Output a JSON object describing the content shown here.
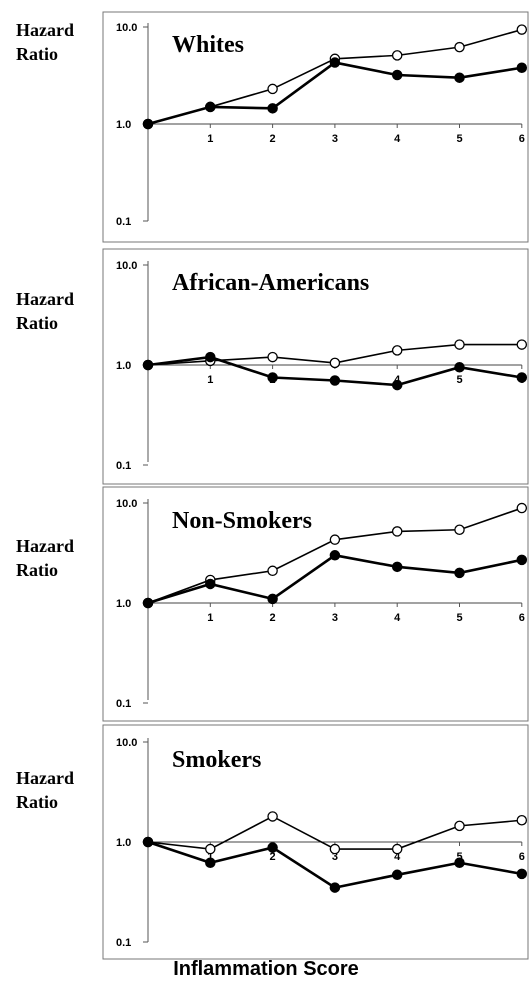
{
  "y_axis_label": [
    "Hazard",
    "Ratio"
  ],
  "x_axis_label": "Inflammation Score",
  "y_ticks": [
    "10.0",
    "1.0",
    "0.1"
  ],
  "x_ticks": [
    "1",
    "2",
    "3",
    "4",
    "5",
    "6"
  ],
  "chart_data": [
    {
      "type": "line",
      "title": "Whites",
      "yscale": "log",
      "ylim": [
        0.1,
        10
      ],
      "x": [
        0,
        1,
        2,
        3,
        4,
        5,
        6
      ],
      "series": [
        {
          "marker": "open-circle",
          "values": [
            1.0,
            1.5,
            2.3,
            4.7,
            5.1,
            6.2,
            9.4
          ]
        },
        {
          "marker": "filled-circle",
          "values": [
            1.0,
            1.5,
            1.45,
            4.3,
            3.2,
            3.0,
            3.8
          ]
        }
      ]
    },
    {
      "type": "line",
      "title": "African-Americans",
      "yscale": "log",
      "ylim": [
        0.1,
        10
      ],
      "x": [
        0,
        1,
        2,
        3,
        4,
        5,
        6
      ],
      "series": [
        {
          "marker": "open-circle",
          "values": [
            1.0,
            1.1,
            1.2,
            1.05,
            1.4,
            1.6,
            1.6
          ]
        },
        {
          "marker": "filled-circle",
          "values": [
            1.0,
            1.2,
            0.75,
            0.7,
            0.63,
            0.95,
            0.75
          ]
        }
      ]
    },
    {
      "type": "line",
      "title": "Non-Smokers",
      "yscale": "log",
      "ylim": [
        0.1,
        10
      ],
      "x": [
        0,
        1,
        2,
        3,
        4,
        5,
        6
      ],
      "series": [
        {
          "marker": "open-circle",
          "values": [
            1.0,
            1.7,
            2.1,
            4.3,
            5.2,
            5.4,
            8.9
          ]
        },
        {
          "marker": "filled-circle",
          "values": [
            1.0,
            1.55,
            1.1,
            3.0,
            2.3,
            2.0,
            2.7
          ]
        }
      ]
    },
    {
      "type": "line",
      "title": "Smokers",
      "yscale": "log",
      "ylim": [
        0.1,
        10
      ],
      "x": [
        0,
        1,
        2,
        3,
        4,
        5,
        6
      ],
      "series": [
        {
          "marker": "open-circle",
          "values": [
            1.0,
            0.85,
            1.8,
            0.85,
            0.85,
            1.45,
            1.65
          ]
        },
        {
          "marker": "filled-circle",
          "values": [
            1.0,
            0.62,
            0.88,
            0.35,
            0.47,
            0.62,
            0.48
          ]
        }
      ]
    }
  ]
}
